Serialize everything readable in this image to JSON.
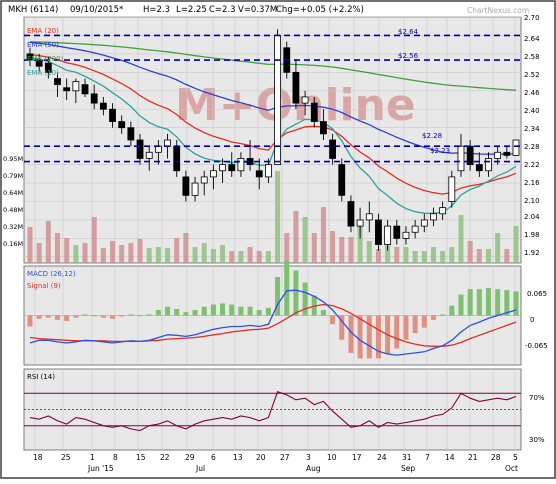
{
  "header": {
    "stock": "MKH (6114)",
    "date": "09/10/2015*",
    "high": "H=2.3",
    "low": "L=2.25",
    "close": "C=2.3",
    "volume": "V=0.37M",
    "change": "Chg=+0.05 (+2.2%)",
    "watermark": "ChartNexus.com",
    "logo": "M+Online"
  },
  "colors": {
    "ema20": "#e03020",
    "ema50": "#3040d0",
    "ema200": "#40a040",
    "ema10": "#30a0a0",
    "macd": "#3050e0",
    "signal": "#e03020",
    "rsi": "#800040",
    "hline": "#0000aa",
    "volume": "#90c080",
    "volume_down": "#d09090"
  },
  "price_panel": {
    "legend": [
      {
        "label": "EMA (20)",
        "color": "#e03020"
      },
      {
        "label": "EMA (50)",
        "color": "#3040d0"
      },
      {
        "label": "EMA (200)",
        "color": "#40a040"
      },
      {
        "label": "EMA (10)",
        "color": "#30a0a0"
      }
    ],
    "price_ticks": [
      "2.70",
      "2.64",
      "2.58",
      "2.52",
      "2.46",
      "2.40",
      "2.34",
      "2.28",
      "2.22",
      "2.16",
      "2.10",
      "2.04",
      "1.98",
      "1.92"
    ],
    "volume_ticks": [
      "0.95M",
      "0.79M",
      "0.64M",
      "0.48M",
      "0.32M",
      "0.16M"
    ],
    "hline_labels": [
      "$2.64",
      "$2.56",
      "$2.28",
      "$2.23"
    ]
  },
  "macd_panel": {
    "label": "MACD (26,12)",
    "signal_label": "Signal (9)",
    "ticks": [
      "0.065",
      "0",
      "-0.065"
    ]
  },
  "rsi_panel": {
    "label": "RSI (14)",
    "ticks": [
      "70%",
      "30%"
    ]
  },
  "xaxis": {
    "ticks": [
      "18",
      "25",
      "1",
      "8",
      "15",
      "22",
      "29",
      "6",
      "13",
      "20",
      "27",
      "3",
      "10",
      "17",
      "24",
      "31",
      "7",
      "14",
      "21",
      "28",
      "5"
    ],
    "months": [
      "Jun '15",
      "Jul",
      "Aug",
      "Sep",
      "Oct"
    ]
  },
  "chart_data": {
    "type": "candlestick",
    "title": "MKH (6114)",
    "xlabel": "",
    "ylabel": "",
    "ylim": [
      1.9,
      2.7
    ],
    "hlines": [
      2.64,
      2.56,
      2.28,
      2.23
    ],
    "ohlc": [
      {
        "i": 0,
        "o": 2.58,
        "h": 2.6,
        "l": 2.54,
        "c": 2.56
      },
      {
        "i": 1,
        "o": 2.56,
        "h": 2.58,
        "l": 2.52,
        "c": 2.54
      },
      {
        "i": 2,
        "o": 2.55,
        "h": 2.57,
        "l": 2.5,
        "c": 2.52
      },
      {
        "i": 3,
        "o": 2.5,
        "h": 2.52,
        "l": 2.44,
        "c": 2.48
      },
      {
        "i": 4,
        "o": 2.47,
        "h": 2.5,
        "l": 2.43,
        "c": 2.46
      },
      {
        "i": 5,
        "o": 2.46,
        "h": 2.5,
        "l": 2.42,
        "c": 2.49
      },
      {
        "i": 6,
        "o": 2.48,
        "h": 2.5,
        "l": 2.44,
        "c": 2.45
      },
      {
        "i": 7,
        "o": 2.45,
        "h": 2.48,
        "l": 2.4,
        "c": 2.42
      },
      {
        "i": 8,
        "o": 2.42,
        "h": 2.44,
        "l": 2.38,
        "c": 2.4
      },
      {
        "i": 9,
        "o": 2.4,
        "h": 2.42,
        "l": 2.34,
        "c": 2.36
      },
      {
        "i": 10,
        "o": 2.36,
        "h": 2.38,
        "l": 2.32,
        "c": 2.34
      },
      {
        "i": 11,
        "o": 2.34,
        "h": 2.36,
        "l": 2.28,
        "c": 2.3
      },
      {
        "i": 12,
        "o": 2.3,
        "h": 2.32,
        "l": 2.22,
        "c": 2.24
      },
      {
        "i": 13,
        "o": 2.24,
        "h": 2.28,
        "l": 2.2,
        "c": 2.26
      },
      {
        "i": 14,
        "o": 2.26,
        "h": 2.3,
        "l": 2.22,
        "c": 2.28
      },
      {
        "i": 15,
        "o": 2.28,
        "h": 2.32,
        "l": 2.24,
        "c": 2.3
      },
      {
        "i": 16,
        "o": 2.28,
        "h": 2.3,
        "l": 2.18,
        "c": 2.2
      },
      {
        "i": 17,
        "o": 2.18,
        "h": 2.2,
        "l": 2.1,
        "c": 2.12
      },
      {
        "i": 18,
        "o": 2.12,
        "h": 2.18,
        "l": 2.1,
        "c": 2.16
      },
      {
        "i": 19,
        "o": 2.16,
        "h": 2.2,
        "l": 2.12,
        "c": 2.18
      },
      {
        "i": 20,
        "o": 2.18,
        "h": 2.22,
        "l": 2.14,
        "c": 2.2
      },
      {
        "i": 21,
        "o": 2.2,
        "h": 2.24,
        "l": 2.16,
        "c": 2.22
      },
      {
        "i": 22,
        "o": 2.22,
        "h": 2.26,
        "l": 2.18,
        "c": 2.2
      },
      {
        "i": 23,
        "o": 2.2,
        "h": 2.26,
        "l": 2.18,
        "c": 2.24
      },
      {
        "i": 24,
        "o": 2.24,
        "h": 2.3,
        "l": 2.2,
        "c": 2.22
      },
      {
        "i": 25,
        "o": 2.2,
        "h": 2.24,
        "l": 2.14,
        "c": 2.18
      },
      {
        "i": 26,
        "o": 2.18,
        "h": 2.24,
        "l": 2.16,
        "c": 2.22
      },
      {
        "i": 27,
        "o": 2.22,
        "h": 2.66,
        "l": 2.22,
        "c": 2.64
      },
      {
        "i": 28,
        "o": 2.6,
        "h": 2.62,
        "l": 2.5,
        "c": 2.52
      },
      {
        "i": 29,
        "o": 2.52,
        "h": 2.56,
        "l": 2.4,
        "c": 2.42
      },
      {
        "i": 30,
        "o": 2.42,
        "h": 2.46,
        "l": 2.38,
        "c": 2.44
      },
      {
        "i": 31,
        "o": 2.42,
        "h": 2.44,
        "l": 2.34,
        "c": 2.36
      },
      {
        "i": 32,
        "o": 2.36,
        "h": 2.4,
        "l": 2.3,
        "c": 2.32
      },
      {
        "i": 33,
        "o": 2.3,
        "h": 2.32,
        "l": 2.22,
        "c": 2.24
      },
      {
        "i": 34,
        "o": 2.22,
        "h": 2.24,
        "l": 2.1,
        "c": 2.12
      },
      {
        "i": 35,
        "o": 2.1,
        "h": 2.12,
        "l": 2.0,
        "c": 2.02
      },
      {
        "i": 36,
        "o": 2.02,
        "h": 2.08,
        "l": 1.98,
        "c": 2.04
      },
      {
        "i": 37,
        "o": 2.04,
        "h": 2.1,
        "l": 2.0,
        "c": 2.06
      },
      {
        "i": 38,
        "o": 2.04,
        "h": 2.06,
        "l": 1.94,
        "c": 1.96
      },
      {
        "i": 39,
        "o": 1.96,
        "h": 2.04,
        "l": 1.94,
        "c": 2.02
      },
      {
        "i": 40,
        "o": 2.02,
        "h": 2.04,
        "l": 1.96,
        "c": 1.98
      },
      {
        "i": 41,
        "o": 1.98,
        "h": 2.02,
        "l": 1.96,
        "c": 2.0
      },
      {
        "i": 42,
        "o": 2.0,
        "h": 2.04,
        "l": 1.98,
        "c": 2.02
      },
      {
        "i": 43,
        "o": 2.02,
        "h": 2.06,
        "l": 2.0,
        "c": 2.04
      },
      {
        "i": 44,
        "o": 2.04,
        "h": 2.08,
        "l": 2.02,
        "c": 2.06
      },
      {
        "i": 45,
        "o": 2.06,
        "h": 2.1,
        "l": 2.04,
        "c": 2.08
      },
      {
        "i": 46,
        "o": 2.1,
        "h": 2.2,
        "l": 2.08,
        "c": 2.18
      },
      {
        "i": 47,
        "o": 2.2,
        "h": 2.32,
        "l": 2.18,
        "c": 2.28
      },
      {
        "i": 48,
        "o": 2.28,
        "h": 2.3,
        "l": 2.2,
        "c": 2.22
      },
      {
        "i": 49,
        "o": 2.22,
        "h": 2.26,
        "l": 2.18,
        "c": 2.2
      },
      {
        "i": 50,
        "o": 2.2,
        "h": 2.26,
        "l": 2.18,
        "c": 2.24
      },
      {
        "i": 51,
        "o": 2.24,
        "h": 2.28,
        "l": 2.22,
        "c": 2.26
      },
      {
        "i": 52,
        "o": 2.26,
        "h": 2.28,
        "l": 2.24,
        "c": 2.25
      },
      {
        "i": 53,
        "o": 2.25,
        "h": 2.3,
        "l": 2.25,
        "c": 2.3
      }
    ],
    "volume": [
      0.36,
      0.2,
      0.42,
      0.3,
      0.25,
      0.18,
      0.2,
      0.46,
      0.15,
      0.22,
      0.18,
      0.2,
      0.24,
      0.15,
      0.16,
      0.15,
      0.25,
      0.3,
      0.16,
      0.2,
      0.14,
      0.18,
      0.12,
      0.12,
      0.16,
      0.12,
      0.12,
      0.92,
      0.3,
      0.52,
      0.46,
      0.3,
      0.56,
      0.32,
      0.26,
      0.26,
      0.42,
      0.22,
      0.14,
      0.25,
      0.16,
      0.16,
      0.12,
      0.12,
      0.16,
      0.12,
      0.16,
      0.48,
      0.22,
      0.14,
      0.14,
      0.3,
      0.14,
      0.37
    ],
    "macd": [
      -0.05,
      -0.045,
      -0.045,
      -0.048,
      -0.05,
      -0.048,
      -0.045,
      -0.046,
      -0.048,
      -0.05,
      -0.048,
      -0.046,
      -0.047,
      -0.045,
      -0.04,
      -0.035,
      -0.036,
      -0.038,
      -0.035,
      -0.03,
      -0.025,
      -0.022,
      -0.02,
      -0.02,
      -0.018,
      -0.02,
      -0.016,
      0.02,
      0.045,
      0.046,
      0.042,
      0.035,
      0.025,
      0.01,
      -0.01,
      -0.03,
      -0.045,
      -0.055,
      -0.065,
      -0.07,
      -0.072,
      -0.07,
      -0.068,
      -0.066,
      -0.06,
      -0.055,
      -0.045,
      -0.03,
      -0.018,
      -0.012,
      -0.005,
      0.0,
      0.005,
      0.01
    ],
    "signal": [
      -0.04,
      -0.042,
      -0.043,
      -0.044,
      -0.045,
      -0.046,
      -0.046,
      -0.046,
      -0.046,
      -0.047,
      -0.047,
      -0.047,
      -0.047,
      -0.046,
      -0.045,
      -0.043,
      -0.042,
      -0.041,
      -0.04,
      -0.038,
      -0.035,
      -0.033,
      -0.03,
      -0.028,
      -0.026,
      -0.025,
      -0.023,
      -0.015,
      -0.005,
      0.005,
      0.012,
      0.017,
      0.02,
      0.018,
      0.012,
      0.004,
      -0.006,
      -0.016,
      -0.026,
      -0.035,
      -0.042,
      -0.048,
      -0.052,
      -0.055,
      -0.056,
      -0.056,
      -0.054,
      -0.049,
      -0.042,
      -0.036,
      -0.03,
      -0.024,
      -0.018,
      -0.012
    ],
    "rsi": [
      40,
      38,
      42,
      36,
      32,
      40,
      38,
      34,
      30,
      28,
      30,
      26,
      24,
      30,
      32,
      36,
      30,
      26,
      32,
      36,
      38,
      40,
      38,
      42,
      40,
      36,
      40,
      72,
      68,
      62,
      64,
      56,
      60,
      48,
      38,
      28,
      30,
      36,
      28,
      34,
      32,
      34,
      36,
      38,
      42,
      44,
      52,
      70,
      64,
      60,
      62,
      64,
      62,
      66
    ]
  }
}
